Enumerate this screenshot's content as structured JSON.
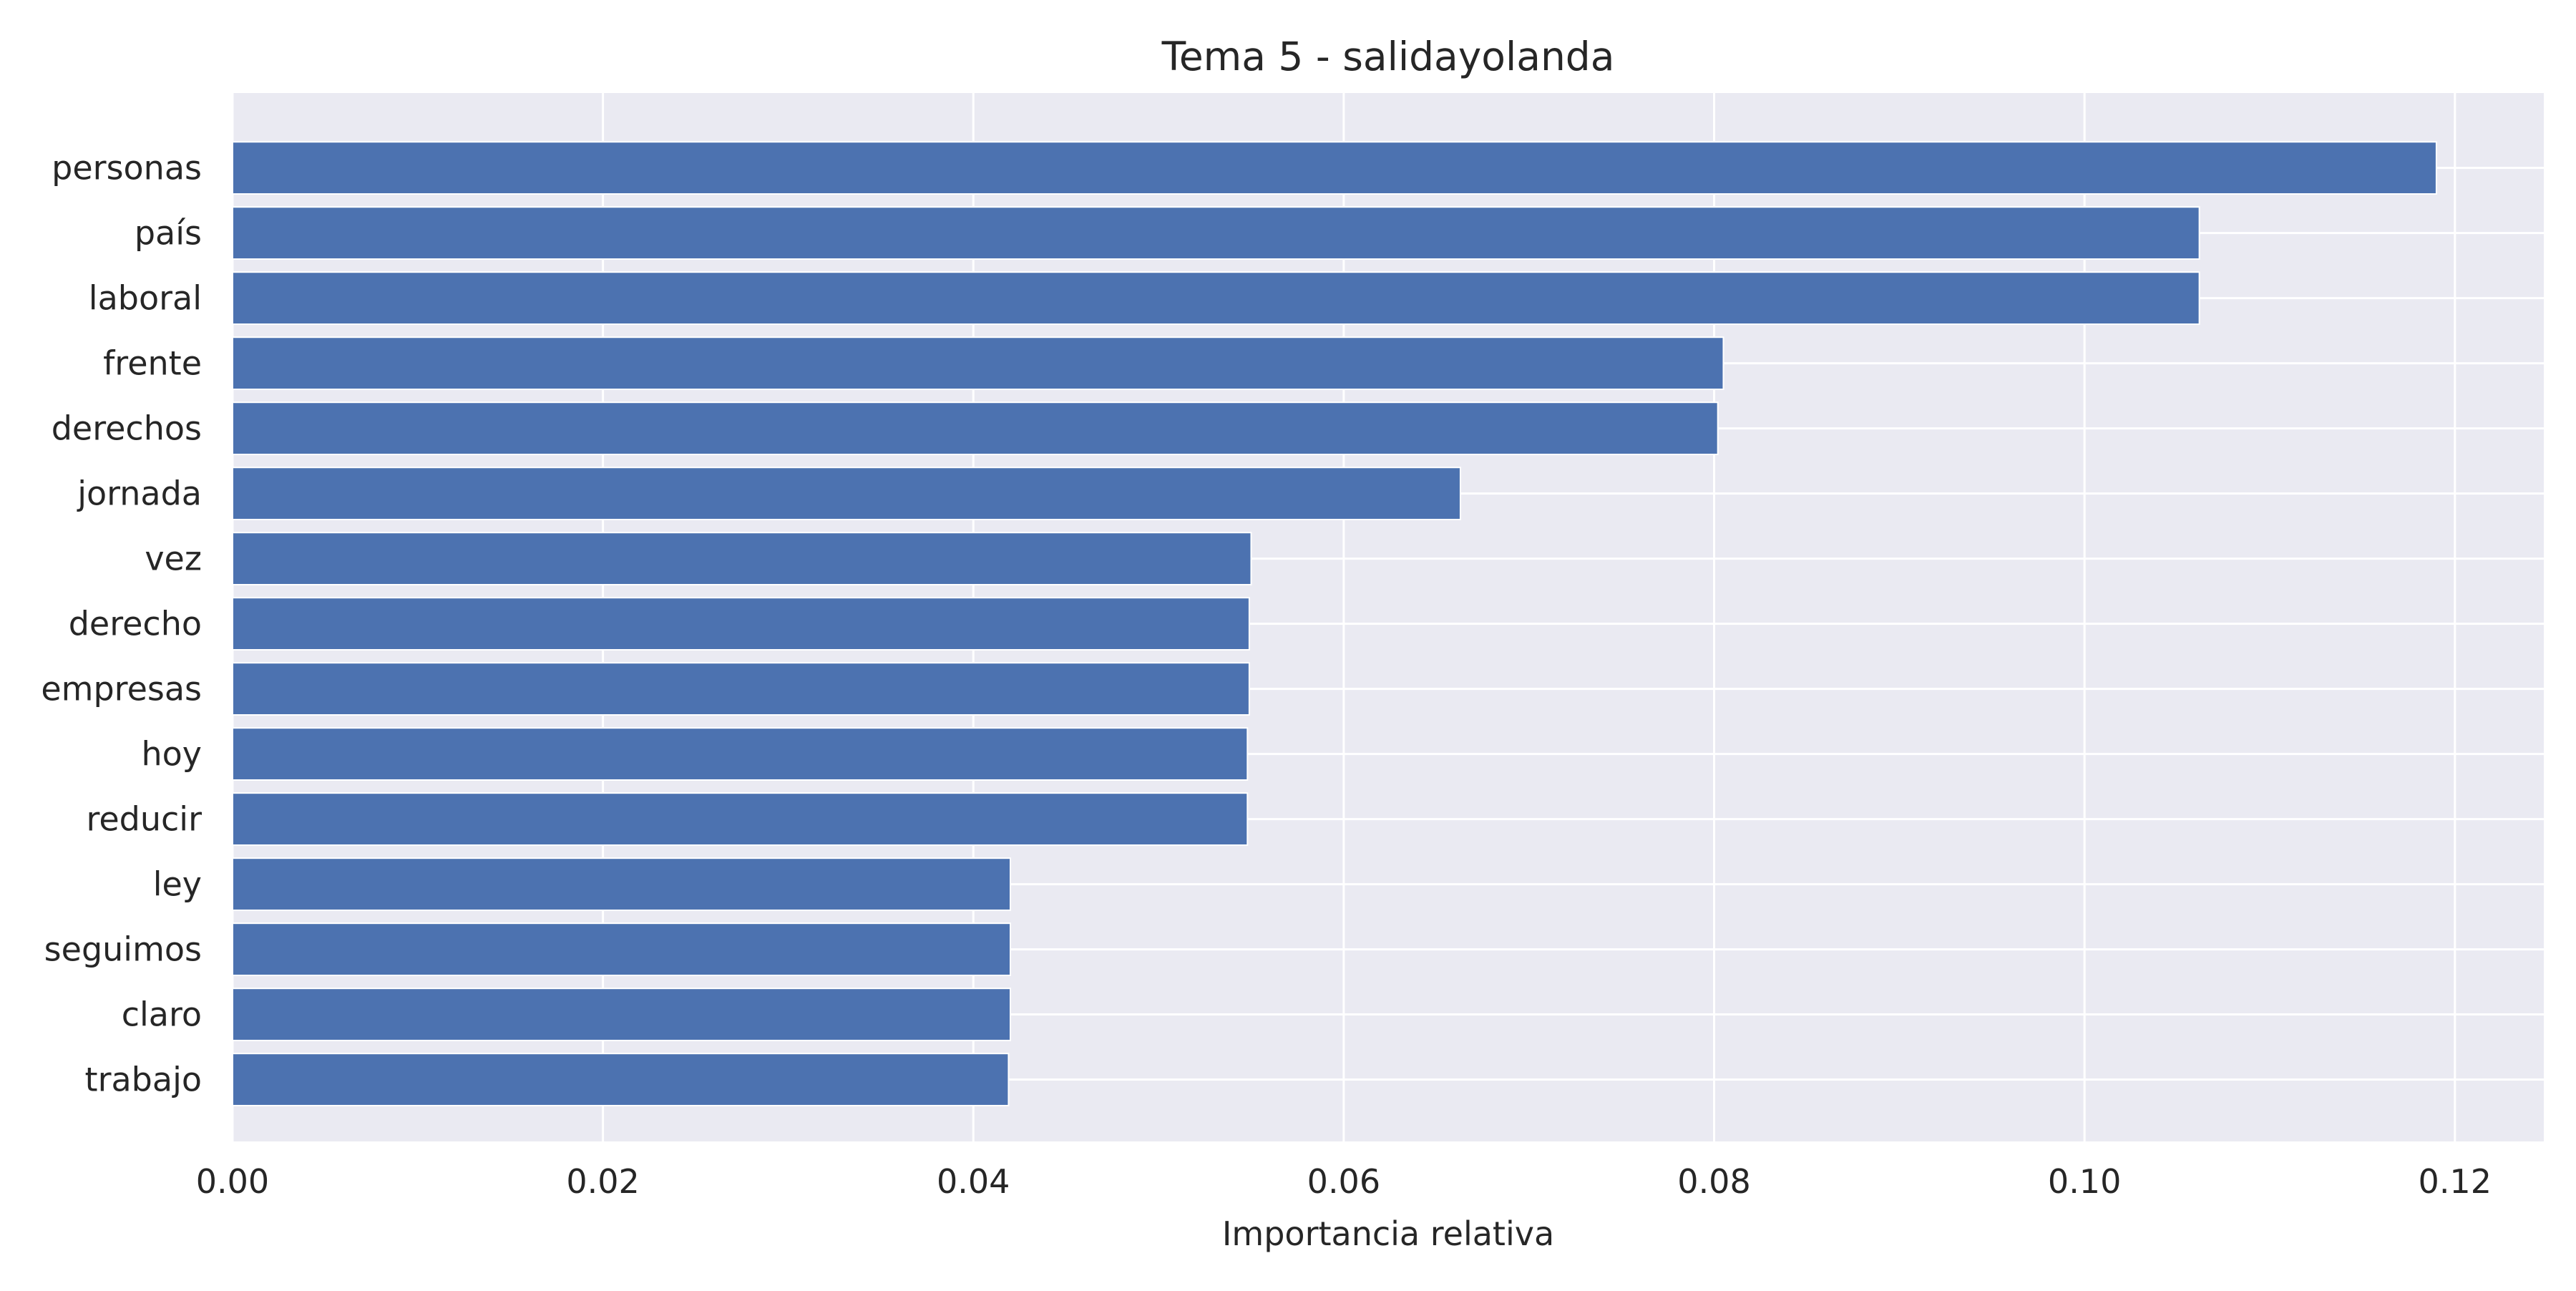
{
  "chart_data": {
    "type": "bar",
    "orientation": "horizontal",
    "title": "Tema 5 - salidayolanda",
    "xlabel": "Importancia relativa",
    "ylabel": "",
    "xlim": [
      0,
      0.1248
    ],
    "xticks": [
      0.0,
      0.02,
      0.04,
      0.06,
      0.08,
      0.1,
      0.12
    ],
    "xtick_labels": [
      "0.00",
      "0.02",
      "0.04",
      "0.06",
      "0.08",
      "0.10",
      "0.12"
    ],
    "grid": true,
    "categories": [
      "personas",
      "país",
      "laboral",
      "frente",
      "derechos",
      "jornada",
      "vez",
      "derecho",
      "empresas",
      "hoy",
      "reducir",
      "ley",
      "seguimos",
      "claro",
      "trabajo"
    ],
    "values": [
      0.119,
      0.1062,
      0.1062,
      0.0805,
      0.0802,
      0.0663,
      0.055,
      0.0549,
      0.0549,
      0.0548,
      0.0548,
      0.042,
      0.042,
      0.042,
      0.0419
    ],
    "colors": {
      "bar": "#4c72b0",
      "plot_background": "#eaeaf2",
      "grid": "#ffffff",
      "text": "#262626"
    }
  }
}
